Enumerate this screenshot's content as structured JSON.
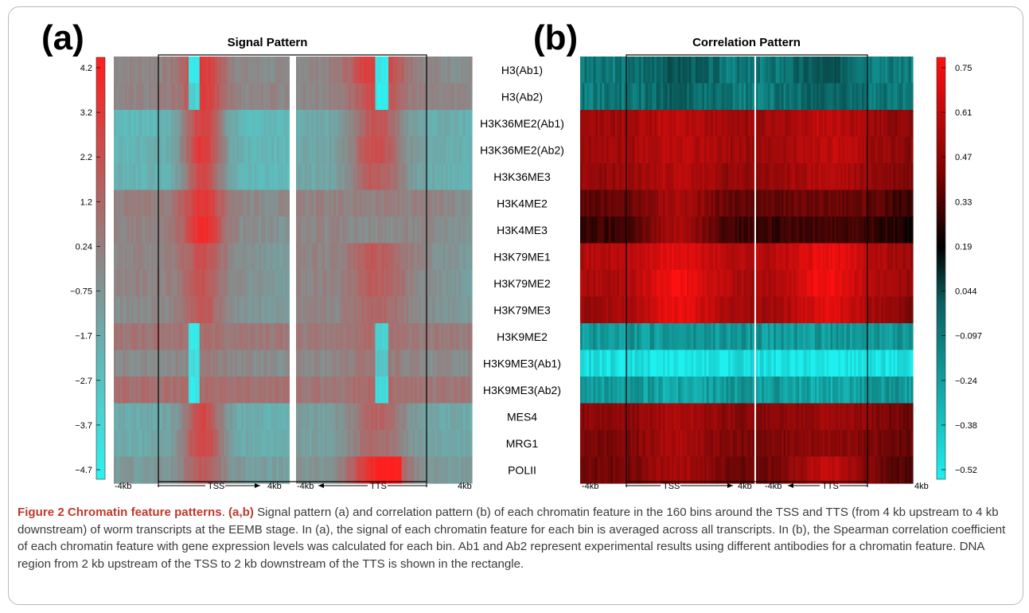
{
  "figure": {
    "panel_a_label": "(a)",
    "panel_b_label": "(b)",
    "panel_a_title": "Signal Pattern",
    "panel_b_title": "Correlation Pattern",
    "features": [
      "H3(Ab1)",
      "H3(Ab2)",
      "H3K36ME2(Ab1)",
      "H3K36ME2(Ab2)",
      "H3K36ME3",
      "H3K4ME2",
      "H3K4ME3",
      "H3K79ME1",
      "H3K79ME2",
      "H3K79ME3",
      "H3K9ME2",
      "H3K9ME3(Ab1)",
      "H3K9ME3(Ab2)",
      "MES4",
      "MRG1",
      "POLII"
    ],
    "signal_colorbar_ticks": [
      "4.2",
      "3.2",
      "2.2",
      "1.2",
      "0.24",
      "−0.75",
      "−1.7",
      "−2.7",
      "−3.7",
      "−4.7"
    ],
    "correlation_colorbar_ticks": [
      "0.75",
      "0.61",
      "0.47",
      "0.33",
      "0.19",
      "0.044",
      "−0.097",
      "−0.24",
      "−0.38",
      "−0.52"
    ],
    "axis": {
      "left_end": "-4kb",
      "right_end": "4kb",
      "tss": "TSS",
      "tts": "TTS"
    },
    "colors": {
      "signal_high": "#ff1e1e",
      "signal_mid": "#8a8a8a",
      "signal_low": "#2ef2f2",
      "corr_high": "#ff1010",
      "corr_mid": "#000000",
      "corr_low": "#1ef0f0"
    }
  },
  "caption": {
    "title": "Figure 2 Chromatin feature patterns",
    "panels_ref": "(a,b)",
    "body": " Signal pattern (a) and correlation pattern (b) of each chromatin feature in the 160 bins around the TSS and TTS (from 4 kb upstream to 4 kb downstream) of worm transcripts at the EEMB stage. In (a), the signal of each chromatin feature for each bin is averaged across all transcripts. In (b), the Spearman correlation coefficient of each chromatin feature with gene expression levels was calculated for each bin. Ab1 and Ab2 represent experimental results using different antibodies for a chromatin feature. DNA region from 2 kb upstream of the TSS to 2 kb downstream of the TTS is shown in the rectangle."
  }
}
